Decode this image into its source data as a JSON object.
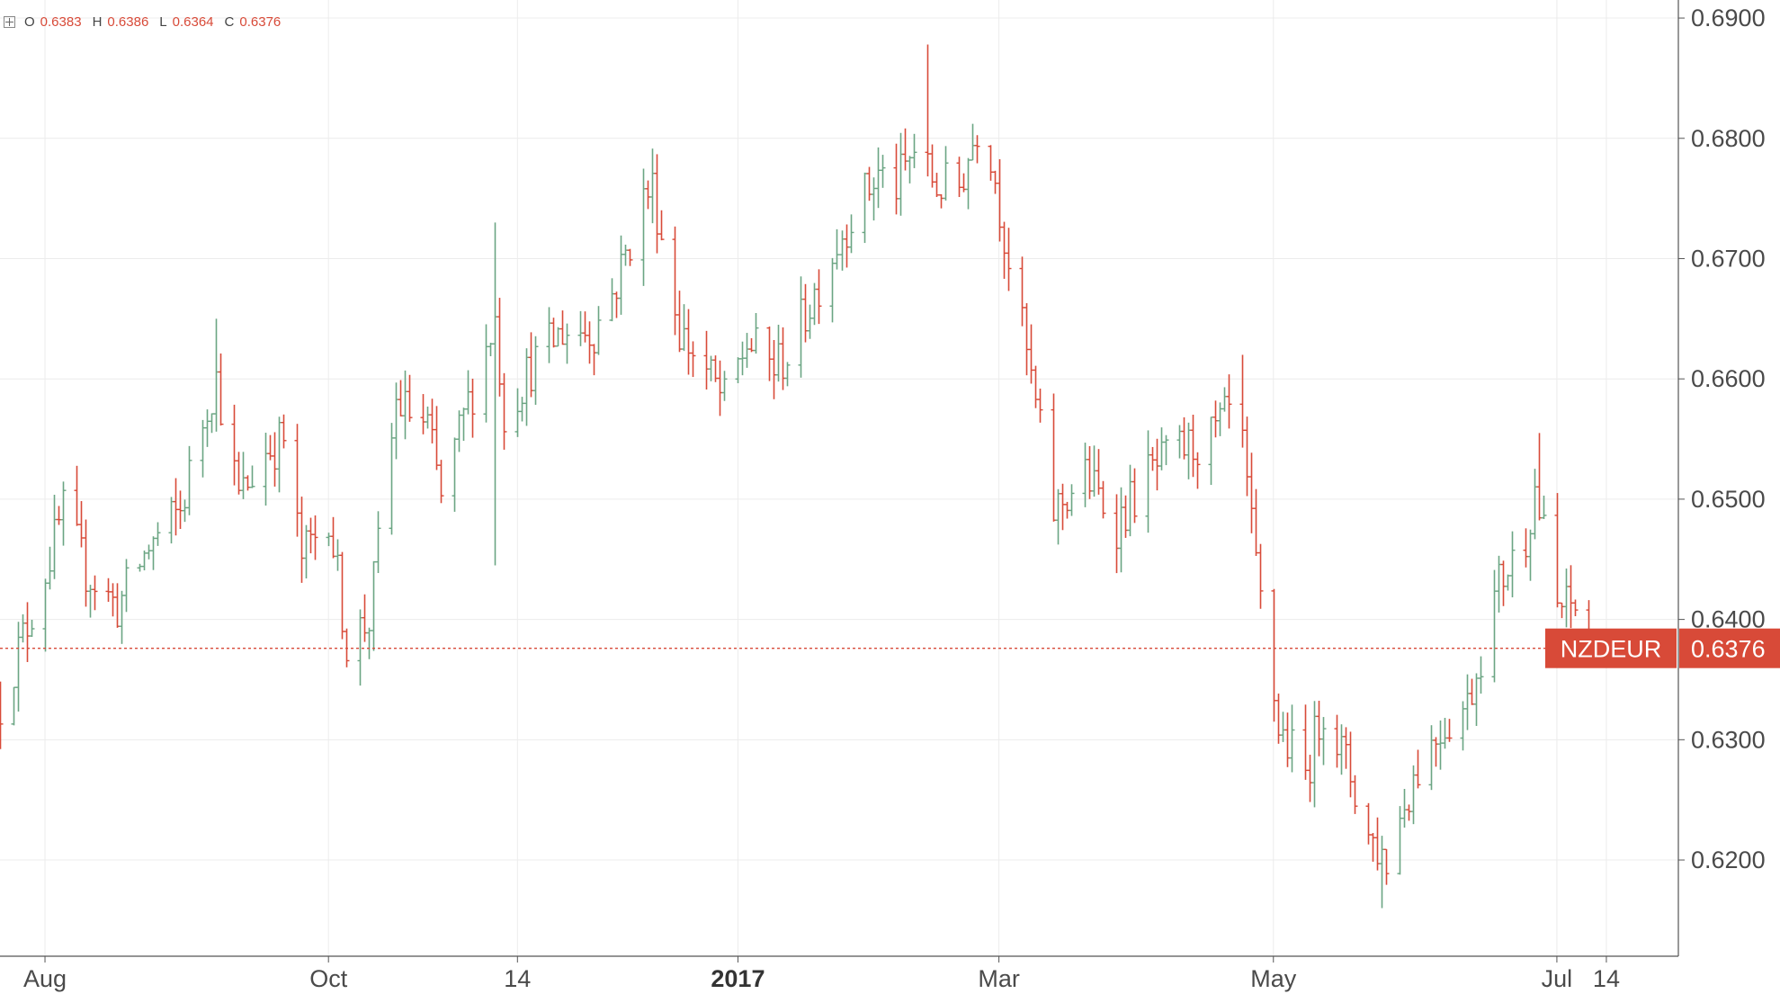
{
  "legend": {
    "o_label": "O",
    "o_value": "0.6383",
    "h_label": "H",
    "h_value": "0.6386",
    "l_label": "L",
    "l_value": "0.6364",
    "c_label": "C",
    "c_value": "0.6376"
  },
  "colors": {
    "up": "#6ba583",
    "down": "#d84a38",
    "grid": "#ececec",
    "axis_text": "#4a4a4a",
    "price_tag_bg": "#d84a38",
    "price_tag_text": "#ffffff"
  },
  "chart_data": {
    "type": "ohlc",
    "symbol": "NZDEUR",
    "last_price": 0.6376,
    "last_price_label": "0.6376",
    "ylim": [
      0.612,
      0.6915
    ],
    "y_ticks": [
      "0.6200",
      "0.6300",
      "0.6400",
      "0.6500",
      "0.6600",
      "0.6700",
      "0.6800",
      "0.6900"
    ],
    "x_ticks": [
      {
        "label": "Aug",
        "date": "2016-08-01",
        "bold": false
      },
      {
        "label": "Oct",
        "date": "2016-10-03",
        "bold": false
      },
      {
        "label": "14",
        "date": "2016-11-14",
        "bold": false
      },
      {
        "label": "2017",
        "date": "2017-01-02",
        "bold": true
      },
      {
        "label": "Mar",
        "date": "2017-03-01",
        "bold": false
      },
      {
        "label": "May",
        "date": "2017-05-01",
        "bold": false
      },
      {
        "label": "Jul",
        "date": "2017-07-03",
        "bold": false
      },
      {
        "label": "14",
        "date": "2017-07-14",
        "bold": false
      }
    ],
    "x_start": "2016-07-22",
    "x_end": "2017-07-30",
    "keypoints": [
      [
        "2016-07-22",
        0.633
      ],
      [
        "2016-08-01",
        0.644
      ],
      [
        "2016-08-05",
        0.649
      ],
      [
        "2016-08-10",
        0.644
      ],
      [
        "2016-08-17",
        0.641
      ],
      [
        "2016-08-24",
        0.646
      ],
      [
        "2016-08-31",
        0.649
      ],
      [
        "2016-09-06",
        0.658
      ],
      [
        "2016-09-08",
        0.66
      ],
      [
        "2016-09-13",
        0.65
      ],
      [
        "2016-09-19",
        0.654
      ],
      [
        "2016-09-23",
        0.655
      ],
      [
        "2016-09-27",
        0.645
      ],
      [
        "2016-10-03",
        0.649
      ],
      [
        "2016-10-07",
        0.638
      ],
      [
        "2016-10-12",
        0.64
      ],
      [
        "2016-10-18",
        0.658
      ],
      [
        "2016-10-25",
        0.656
      ],
      [
        "2016-10-28",
        0.65
      ],
      [
        "2016-11-03",
        0.658
      ],
      [
        "2016-11-09",
        0.665
      ],
      [
        "2016-11-11",
        0.657
      ],
      [
        "2016-11-17",
        0.661
      ],
      [
        "2016-11-24",
        0.664
      ],
      [
        "2016-12-01",
        0.664
      ],
      [
        "2016-12-06",
        0.668
      ],
      [
        "2016-12-12",
        0.675
      ],
      [
        "2016-12-14",
        0.676
      ],
      [
        "2016-12-20",
        0.664
      ],
      [
        "2016-12-27",
        0.66
      ],
      [
        "2016-12-30",
        0.658
      ],
      [
        "2017-01-04",
        0.663
      ],
      [
        "2017-01-10",
        0.661
      ],
      [
        "2017-01-13",
        0.662
      ],
      [
        "2017-01-20",
        0.668
      ],
      [
        "2017-01-26",
        0.673
      ],
      [
        "2017-02-02",
        0.677
      ],
      [
        "2017-02-06",
        0.676
      ],
      [
        "2017-02-10",
        0.679
      ],
      [
        "2017-02-15",
        0.676
      ],
      [
        "2017-02-20",
        0.676
      ],
      [
        "2017-02-24",
        0.681
      ],
      [
        "2017-02-27",
        0.679
      ],
      [
        "2017-03-02",
        0.672
      ],
      [
        "2017-03-07",
        0.662
      ],
      [
        "2017-03-13",
        0.649
      ],
      [
        "2017-03-20",
        0.652
      ],
      [
        "2017-03-27",
        0.648
      ],
      [
        "2017-04-03",
        0.652
      ],
      [
        "2017-04-10",
        0.654
      ],
      [
        "2017-04-17",
        0.655
      ],
      [
        "2017-04-21",
        0.657
      ],
      [
        "2017-04-24",
        0.654
      ],
      [
        "2017-04-27",
        0.644
      ],
      [
        "2017-05-02",
        0.631
      ],
      [
        "2017-05-08",
        0.627
      ],
      [
        "2017-05-12",
        0.633
      ],
      [
        "2017-05-18",
        0.627
      ],
      [
        "2017-05-22",
        0.622
      ],
      [
        "2017-05-26",
        0.62
      ],
      [
        "2017-06-01",
        0.627
      ],
      [
        "2017-06-07",
        0.631
      ],
      [
        "2017-06-13",
        0.633
      ],
      [
        "2017-06-20",
        0.643
      ],
      [
        "2017-06-26",
        0.647
      ],
      [
        "2017-06-28",
        0.651
      ],
      [
        "2017-07-03",
        0.641
      ],
      [
        "2017-07-07",
        0.641
      ],
      [
        "2017-07-11",
        0.6376
      ]
    ],
    "extremes": [
      {
        "date": "2016-09-08",
        "high": 0.665
      },
      {
        "date": "2016-10-10",
        "low": 0.6345
      },
      {
        "date": "2016-11-09",
        "high": 0.673,
        "low": 0.6445
      },
      {
        "date": "2017-02-13",
        "high": 0.6878
      },
      {
        "date": "2017-04-24",
        "high": 0.662
      },
      {
        "date": "2017-05-25",
        "low": 0.616
      },
      {
        "date": "2017-06-29",
        "high": 0.6555
      },
      {
        "date": "2017-07-11",
        "high": 0.6386,
        "low": 0.6364,
        "open": 0.6383,
        "close": 0.6376
      }
    ]
  }
}
